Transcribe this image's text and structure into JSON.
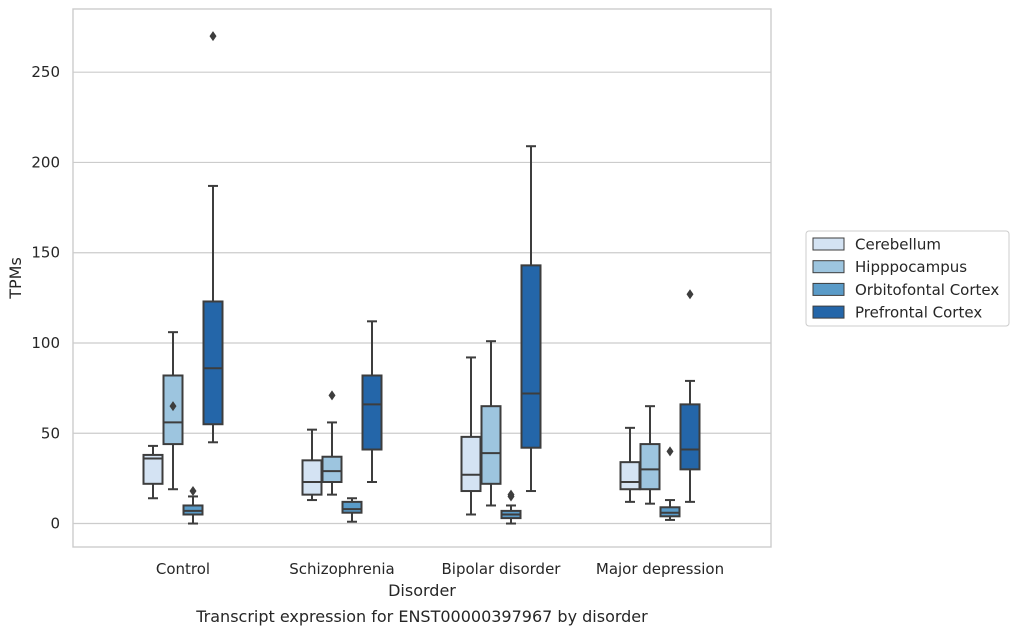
{
  "caption": "Transcript expression for ENST00000397967 by disorder",
  "chart_data": {
    "type": "box",
    "xlabel": "Disorder",
    "ylabel": "TPMs",
    "ylim": [
      -13,
      285
    ],
    "yticks": [
      0,
      50,
      100,
      150,
      200,
      250
    ],
    "grid": "horizontal",
    "legend_position": "right",
    "categories": [
      "Control",
      "Schizophrenia",
      "Bipolar disorder",
      "Major depression"
    ],
    "series": [
      {
        "name": "Cerebellum",
        "color": "#d4e3f3",
        "boxes": [
          {
            "whisker_low": 14,
            "q1": 22,
            "median": 36,
            "q3": 38,
            "whisker_high": 43,
            "outliers": []
          },
          {
            "whisker_low": 13,
            "q1": 16,
            "median": 23,
            "q3": 35,
            "whisker_high": 52,
            "outliers": []
          },
          {
            "whisker_low": 5,
            "q1": 18,
            "median": 27,
            "q3": 48,
            "whisker_high": 92,
            "outliers": []
          },
          {
            "whisker_low": 12,
            "q1": 19,
            "median": 23,
            "q3": 34,
            "whisker_high": 53,
            "outliers": []
          }
        ]
      },
      {
        "name": "Hipppocampus",
        "color": "#9dc5df",
        "boxes": [
          {
            "whisker_low": 19,
            "q1": 44,
            "median": 56,
            "q3": 82,
            "whisker_high": 106,
            "outliers": [
              65
            ]
          },
          {
            "whisker_low": 16,
            "q1": 23,
            "median": 29,
            "q3": 37,
            "whisker_high": 56,
            "outliers": [
              71
            ]
          },
          {
            "whisker_low": 10,
            "q1": 22,
            "median": 39,
            "q3": 65,
            "whisker_high": 101,
            "outliers": []
          },
          {
            "whisker_low": 11,
            "q1": 19,
            "median": 30,
            "q3": 44,
            "whisker_high": 65,
            "outliers": []
          }
        ]
      },
      {
        "name": "Orbitofontal Cortex",
        "color": "#5a9bc8",
        "boxes": [
          {
            "whisker_low": 0,
            "q1": 5,
            "median": 7,
            "q3": 10,
            "whisker_high": 15,
            "outliers": [
              18
            ]
          },
          {
            "whisker_low": 1,
            "q1": 6,
            "median": 8,
            "q3": 12,
            "whisker_high": 14,
            "outliers": []
          },
          {
            "whisker_low": 0,
            "q1": 3,
            "median": 5,
            "q3": 7,
            "whisker_high": 10,
            "outliers": [
              15,
              16
            ]
          },
          {
            "whisker_low": 2,
            "q1": 4,
            "median": 6,
            "q3": 9,
            "whisker_high": 13,
            "outliers": [
              40
            ]
          }
        ]
      },
      {
        "name": "Prefrontal Cortex",
        "color": "#2466a9",
        "boxes": [
          {
            "whisker_low": 45,
            "q1": 55,
            "median": 86,
            "q3": 123,
            "whisker_high": 187,
            "outliers": [
              270
            ]
          },
          {
            "whisker_low": 23,
            "q1": 41,
            "median": 66,
            "q3": 82,
            "whisker_high": 112,
            "outliers": []
          },
          {
            "whisker_low": 18,
            "q1": 42,
            "median": 72,
            "q3": 143,
            "whisker_high": 209,
            "outliers": []
          },
          {
            "whisker_low": 12,
            "q1": 30,
            "median": 41,
            "q3": 66,
            "whisker_high": 79,
            "outliers": [
              127
            ]
          }
        ]
      }
    ]
  }
}
